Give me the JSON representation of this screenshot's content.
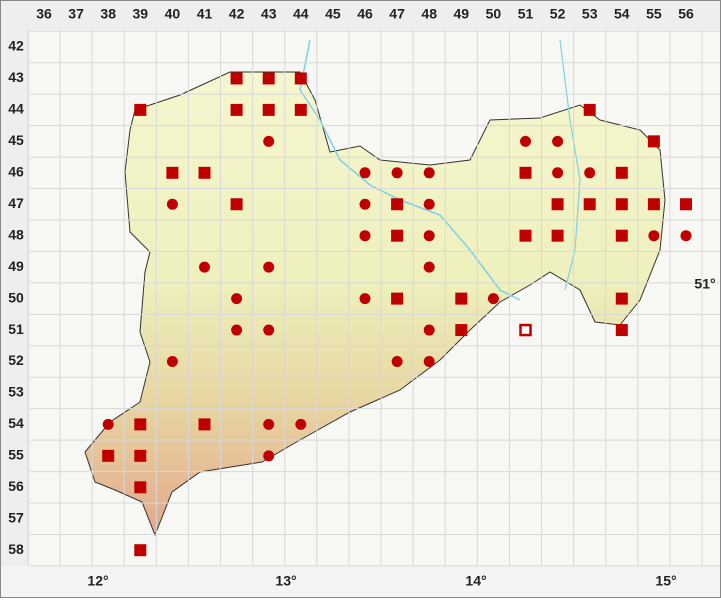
{
  "columns": [
    "36",
    "37",
    "38",
    "39",
    "40",
    "41",
    "42",
    "43",
    "44",
    "45",
    "46",
    "47",
    "48",
    "49",
    "50",
    "51",
    "52",
    "53",
    "54",
    "55",
    "56"
  ],
  "rows": [
    "42",
    "43",
    "44",
    "45",
    "46",
    "47",
    "48",
    "49",
    "50",
    "51",
    "52",
    "53",
    "54",
    "55",
    "56",
    "57",
    "58"
  ],
  "lon_labels": [
    "12°",
    "13°",
    "14°",
    "15°"
  ],
  "lat_labels": [
    "51°"
  ],
  "markers": [
    {
      "col": 42,
      "row": 43,
      "shape": "square"
    },
    {
      "col": 43,
      "row": 43,
      "shape": "square"
    },
    {
      "col": 44,
      "row": 43,
      "shape": "square"
    },
    {
      "col": 39,
      "row": 44,
      "shape": "square"
    },
    {
      "col": 42,
      "row": 44,
      "shape": "square"
    },
    {
      "col": 43,
      "row": 44,
      "shape": "square"
    },
    {
      "col": 44,
      "row": 44,
      "shape": "square"
    },
    {
      "col": 53,
      "row": 44,
      "shape": "square"
    },
    {
      "col": 43,
      "row": 45,
      "shape": "circle"
    },
    {
      "col": 51,
      "row": 45,
      "shape": "circle"
    },
    {
      "col": 52,
      "row": 45,
      "shape": "circle"
    },
    {
      "col": 55,
      "row": 45,
      "shape": "square"
    },
    {
      "col": 40,
      "row": 46,
      "shape": "square"
    },
    {
      "col": 41,
      "row": 46,
      "shape": "square"
    },
    {
      "col": 46,
      "row": 46,
      "shape": "circle"
    },
    {
      "col": 47,
      "row": 46,
      "shape": "circle"
    },
    {
      "col": 48,
      "row": 46,
      "shape": "circle"
    },
    {
      "col": 51,
      "row": 46,
      "shape": "square"
    },
    {
      "col": 52,
      "row": 46,
      "shape": "circle"
    },
    {
      "col": 53,
      "row": 46,
      "shape": "circle"
    },
    {
      "col": 54,
      "row": 46,
      "shape": "square"
    },
    {
      "col": 40,
      "row": 47,
      "shape": "circle"
    },
    {
      "col": 42,
      "row": 47,
      "shape": "square"
    },
    {
      "col": 46,
      "row": 47,
      "shape": "circle"
    },
    {
      "col": 47,
      "row": 47,
      "shape": "square"
    },
    {
      "col": 48,
      "row": 47,
      "shape": "circle"
    },
    {
      "col": 52,
      "row": 47,
      "shape": "square"
    },
    {
      "col": 53,
      "row": 47,
      "shape": "square"
    },
    {
      "col": 54,
      "row": 47,
      "shape": "square"
    },
    {
      "col": 55,
      "row": 47,
      "shape": "square"
    },
    {
      "col": 56,
      "row": 47,
      "shape": "square"
    },
    {
      "col": 46,
      "row": 48,
      "shape": "circle"
    },
    {
      "col": 47,
      "row": 48,
      "shape": "square"
    },
    {
      "col": 48,
      "row": 48,
      "shape": "circle"
    },
    {
      "col": 51,
      "row": 48,
      "shape": "square"
    },
    {
      "col": 52,
      "row": 48,
      "shape": "square"
    },
    {
      "col": 54,
      "row": 48,
      "shape": "square"
    },
    {
      "col": 55,
      "row": 48,
      "shape": "circle"
    },
    {
      "col": 56,
      "row": 48,
      "shape": "circle"
    },
    {
      "col": 41,
      "row": 49,
      "shape": "circle"
    },
    {
      "col": 43,
      "row": 49,
      "shape": "circle"
    },
    {
      "col": 48,
      "row": 49,
      "shape": "circle"
    },
    {
      "col": 42,
      "row": 50,
      "shape": "circle"
    },
    {
      "col": 46,
      "row": 50,
      "shape": "circle"
    },
    {
      "col": 47,
      "row": 50,
      "shape": "square"
    },
    {
      "col": 49,
      "row": 50,
      "shape": "square"
    },
    {
      "col": 50,
      "row": 50,
      "shape": "circle"
    },
    {
      "col": 54,
      "row": 50,
      "shape": "square"
    },
    {
      "col": 42,
      "row": 51,
      "shape": "circle"
    },
    {
      "col": 43,
      "row": 51,
      "shape": "circle"
    },
    {
      "col": 48,
      "row": 51,
      "shape": "circle"
    },
    {
      "col": 49,
      "row": 51,
      "shape": "square"
    },
    {
      "col": 51,
      "row": 51,
      "shape": "open-square"
    },
    {
      "col": 54,
      "row": 51,
      "shape": "square"
    },
    {
      "col": 40,
      "row": 52,
      "shape": "circle"
    },
    {
      "col": 47,
      "row": 52,
      "shape": "circle"
    },
    {
      "col": 48,
      "row": 52,
      "shape": "circle"
    },
    {
      "col": 38,
      "row": 54,
      "shape": "circle"
    },
    {
      "col": 39,
      "row": 54,
      "shape": "square"
    },
    {
      "col": 41,
      "row": 54,
      "shape": "square"
    },
    {
      "col": 43,
      "row": 54,
      "shape": "circle"
    },
    {
      "col": 44,
      "row": 54,
      "shape": "circle"
    },
    {
      "col": 38,
      "row": 55,
      "shape": "square"
    },
    {
      "col": 39,
      "row": 55,
      "shape": "square"
    },
    {
      "col": 43,
      "row": 55,
      "shape": "circle"
    },
    {
      "col": 39,
      "row": 56,
      "shape": "square"
    },
    {
      "col": 39,
      "row": 58,
      "shape": "square"
    }
  ]
}
